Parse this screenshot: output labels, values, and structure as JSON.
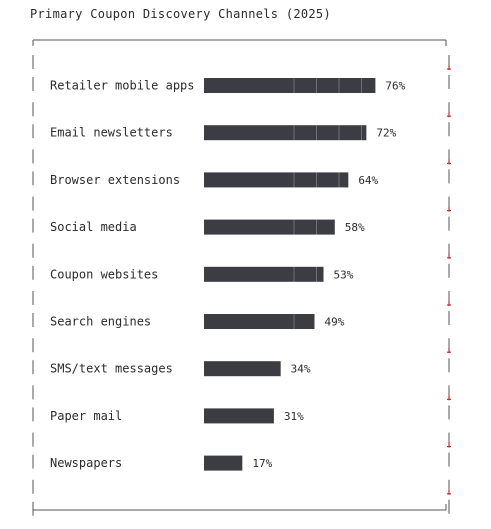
{
  "title": "Primary Coupon Discovery Channels (2025)",
  "colors": {
    "bar": "#3b3d42",
    "frame": "#555555",
    "segment_divider": "#e8e8e8",
    "tick_mark": "#cc2b2b"
  },
  "chart_data": {
    "type": "bar",
    "orientation": "horizontal",
    "title": "Primary Coupon Discovery Channels (2025)",
    "xlabel": "",
    "ylabel": "",
    "value_suffix": "%",
    "xlim": [
      0,
      100
    ],
    "categories": [
      "Retailer mobile apps",
      "Email newsletters",
      "Browser extensions",
      "Social media",
      "Coupon websites",
      "Search engines",
      "SMS/text messages",
      "Paper mail",
      "Newspapers"
    ],
    "values": [
      76,
      72,
      64,
      58,
      53,
      49,
      34,
      31,
      17
    ],
    "value_labels": [
      "76%",
      "72%",
      "64%",
      "58%",
      "53%",
      "49%",
      "34%",
      "31%",
      "17%"
    ],
    "grid": false,
    "legend": "none"
  }
}
